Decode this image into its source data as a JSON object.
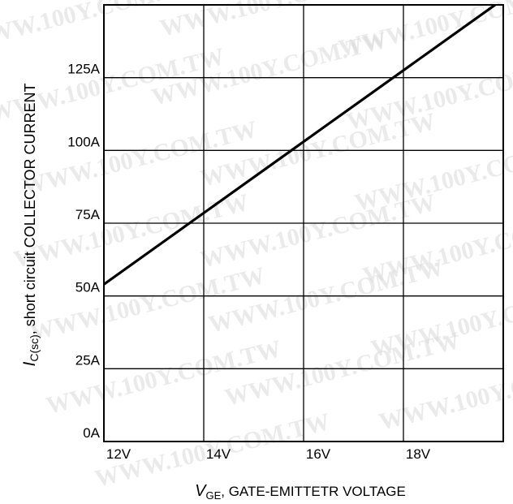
{
  "chart_data": {
    "type": "line",
    "title": "",
    "xlabel": {
      "symbol": "V",
      "subscript": "GE",
      "text": ", GATE-EMITTETR VOLTAGE"
    },
    "ylabel": {
      "symbol": "I",
      "subscript": "C(sc)",
      "text": ", short circuit COLLECTOR CURRENT"
    },
    "xlim": [
      12,
      20
    ],
    "ylim": [
      0,
      150
    ],
    "x_ticks": [
      {
        "value": 12,
        "label": "12V"
      },
      {
        "value": 14,
        "label": "14V"
      },
      {
        "value": 16,
        "label": "16V"
      },
      {
        "value": 18,
        "label": "18V"
      }
    ],
    "y_ticks": [
      {
        "value": 0,
        "label": "0A"
      },
      {
        "value": 25,
        "label": "25A"
      },
      {
        "value": 50,
        "label": "50A"
      },
      {
        "value": 75,
        "label": "75A"
      },
      {
        "value": 100,
        "label": "100A"
      },
      {
        "value": 125,
        "label": "125A"
      }
    ],
    "grid": true,
    "series": [
      {
        "x": [
          12,
          20
        ],
        "y": [
          54,
          152
        ]
      }
    ]
  },
  "watermark": {
    "text": "WWW.100Y.COM.TW"
  },
  "colors": {
    "line": "#000000",
    "grid": "#000000",
    "watermark": "#d9d9d9"
  }
}
